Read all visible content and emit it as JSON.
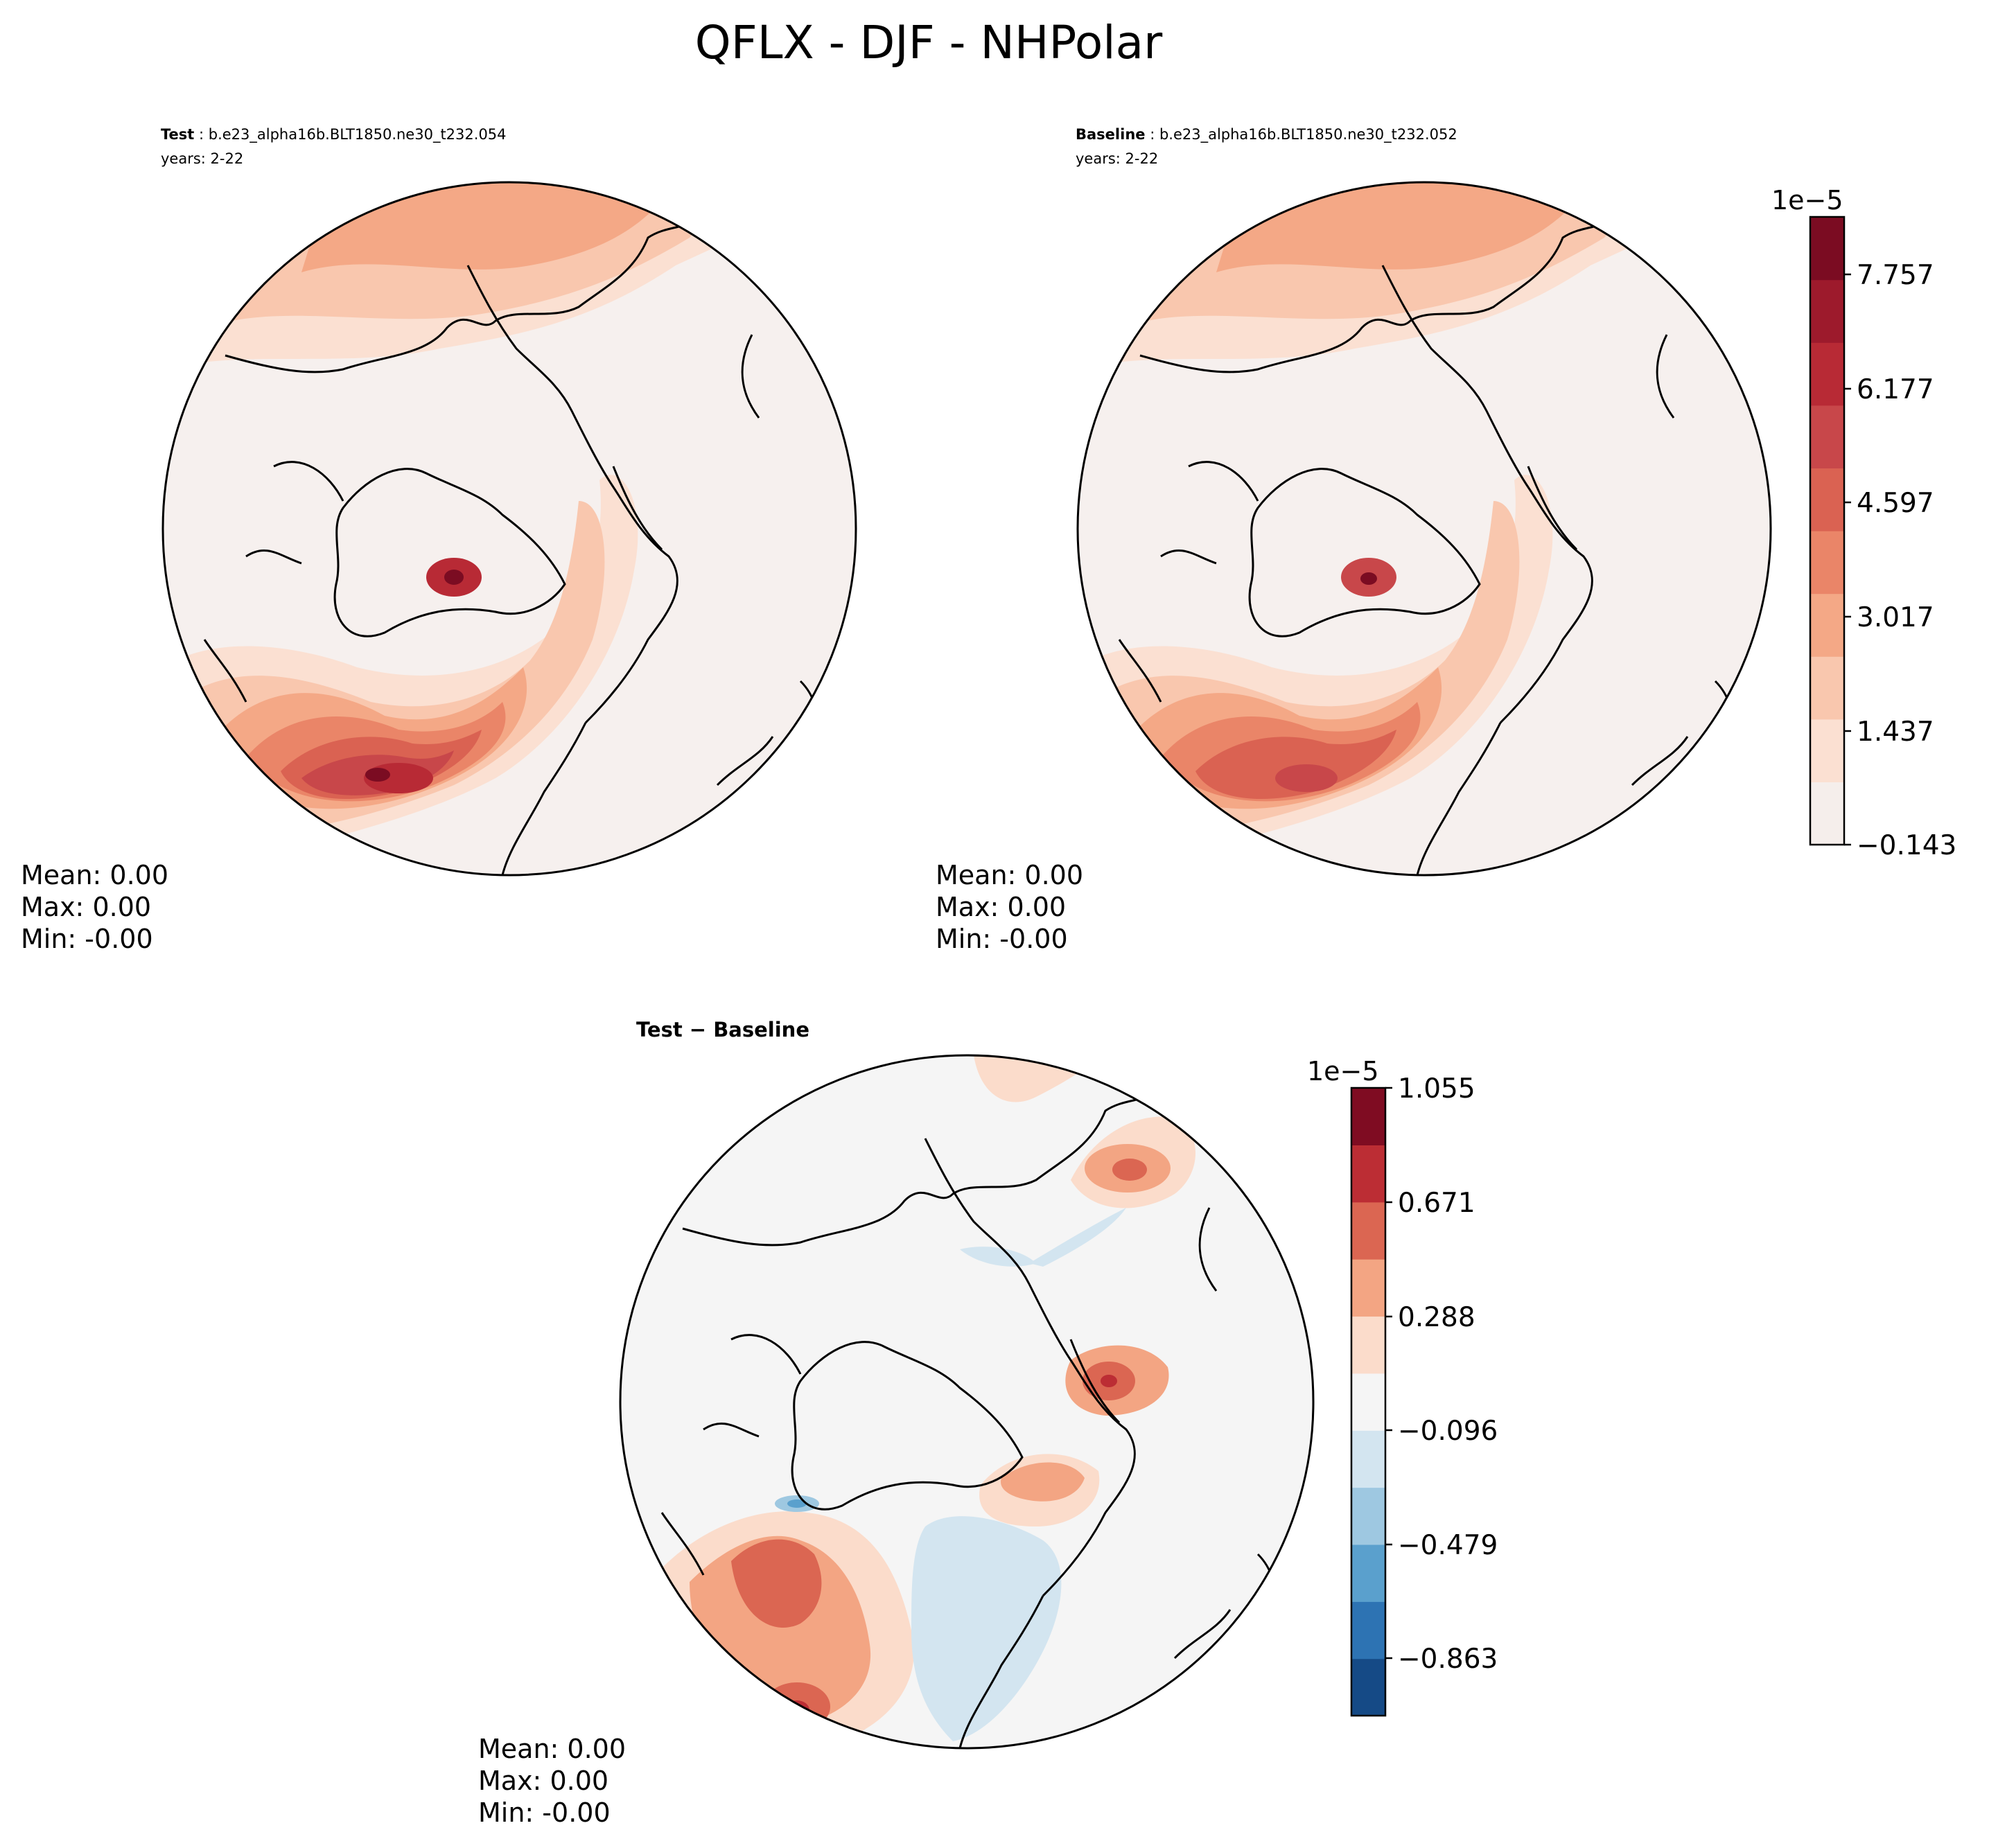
{
  "figure": {
    "title": "QFLX - DJF - NHPolar"
  },
  "panels": {
    "test": {
      "label": "Test",
      "case": " : b.e23_alpha16b.BLT1850.ne30_t232.054",
      "years": "years: 2-22",
      "mean": "Mean:  0.00",
      "max": "Max:  0.00",
      "min": "Min: -0.00"
    },
    "baseline": {
      "label": "Baseline",
      "case": " : b.e23_alpha16b.BLT1850.ne30_t232.052",
      "years": "years: 2-22",
      "mean": "Mean:  0.00",
      "max": "Max:  0.00",
      "min": "Min: -0.00"
    },
    "diff": {
      "title": "Test − Baseline",
      "mean": "Mean:  0.00",
      "max": "Max:  0.00",
      "min": "Min: -0.00"
    }
  },
  "colorbars": {
    "main": {
      "exponent": "1e−5",
      "ticks": [
        "−0.143",
        "1.437",
        "3.017",
        "4.597",
        "6.177",
        "7.757"
      ],
      "colors": [
        "#f5eeeb",
        "#fbe0d2",
        "#f9c7ae",
        "#f4a886",
        "#ea8568",
        "#da6252",
        "#c8474a",
        "#b82a35",
        "#9d1a2c",
        "#7b0c22"
      ]
    },
    "diff": {
      "exponent": "1e−5",
      "ticks": [
        "−0.863",
        "−0.479",
        "−0.096",
        "0.288",
        "0.671",
        "1.055"
      ],
      "colors": [
        "#154a86",
        "#2d73b3",
        "#5aa0cd",
        "#9ec8e1",
        "#d3e5f0",
        "#f5f5f5",
        "#fbdccb",
        "#f3a583",
        "#db6652",
        "#bc2d34",
        "#7f0c22"
      ]
    }
  },
  "chart_data": [
    {
      "type": "heatmap",
      "panel": "Test",
      "projection": "north polar stereographic",
      "variable": "QFLX",
      "season": "DJF",
      "case": "b.e23_alpha16b.BLT1850.ne30_t232.054",
      "years": "2-22",
      "value_range": [
        -1.43e-06,
        8.55e-05
      ],
      "colorbar_ticks": [
        -0.143,
        1.437,
        3.017,
        4.597,
        6.177,
        7.757
      ],
      "colorbar_scale": "1e-5",
      "features": [
        {
          "region": "North Atlantic / Norwegian Sea",
          "value_level": "maximum (~8e-5)"
        },
        {
          "region": "North Pacific",
          "value_level": "moderate (~2-3e-5)"
        },
        {
          "region": "Arctic interior and land",
          "value_level": "near zero"
        }
      ],
      "stats": {
        "mean": "0.00",
        "max": "0.00",
        "min": "-0.00"
      }
    },
    {
      "type": "heatmap",
      "panel": "Baseline",
      "projection": "north polar stereographic",
      "variable": "QFLX",
      "season": "DJF",
      "case": "b.e23_alpha16b.BLT1850.ne30_t232.052",
      "years": "2-22",
      "value_range": [
        -1.43e-06,
        8.55e-05
      ],
      "colorbar_ticks": [
        -0.143,
        1.437,
        3.017,
        4.597,
        6.177,
        7.757
      ],
      "colorbar_scale": "1e-5",
      "features": [
        {
          "region": "North Atlantic / Norwegian Sea",
          "value_level": "maximum (~7.5e-5)"
        },
        {
          "region": "North Pacific",
          "value_level": "moderate (~2-3e-5)"
        },
        {
          "region": "Arctic interior and land",
          "value_level": "near zero"
        }
      ],
      "stats": {
        "mean": "0.00",
        "max": "0.00",
        "min": "-0.00"
      }
    },
    {
      "type": "heatmap",
      "panel": "Test − Baseline",
      "projection": "north polar stereographic",
      "value_range": [
        -1.055e-05,
        1.055e-05
      ],
      "colorbar_ticks": [
        -0.863,
        -0.479,
        -0.096,
        0.288,
        0.671,
        1.055
      ],
      "colorbar_scale": "1e-5",
      "features": [
        {
          "region": "Labrador Sea / North Atlantic",
          "value_level": "positive (up to ~1e-5)"
        },
        {
          "region": "Barents Sea",
          "value_level": "positive (~0.6e-5)"
        },
        {
          "region": "Bering Sea",
          "value_level": "positive (~0.5e-5)"
        },
        {
          "region": "Greenland-Iceland-Norwegian Seas",
          "value_level": "slightly negative (~-0.2e-5)"
        },
        {
          "region": "Baffin Bay",
          "value_level": "negative (~-0.6e-5)"
        }
      ],
      "stats": {
        "mean": "0.00",
        "max": "0.00",
        "min": "-0.00"
      }
    }
  ]
}
